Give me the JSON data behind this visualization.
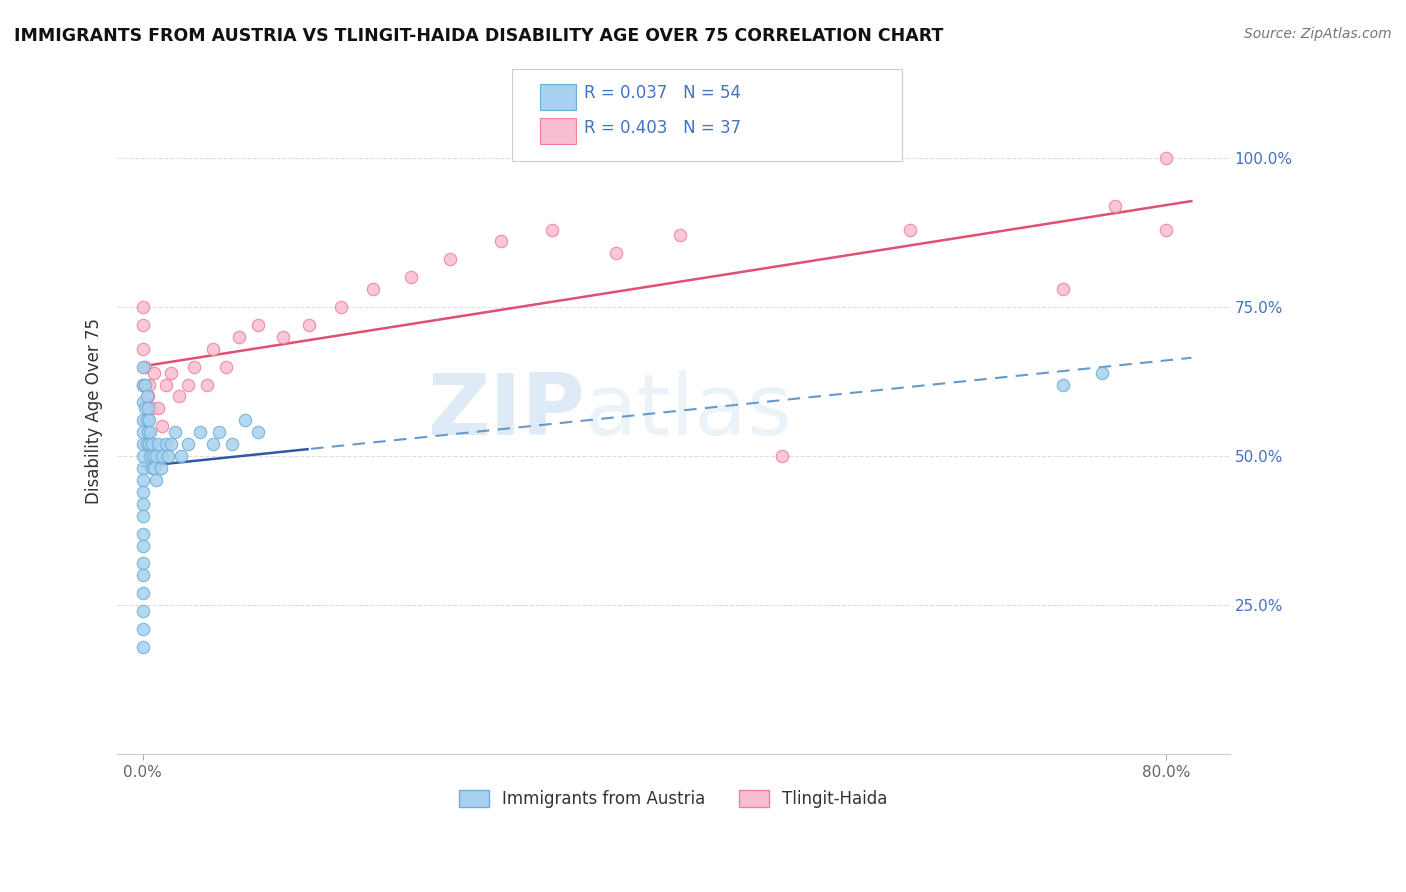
{
  "title": "IMMIGRANTS FROM AUSTRIA VS TLINGIT-HAIDA DISABILITY AGE OVER 75 CORRELATION CHART",
  "source_text": "Source: ZipAtlas.com",
  "ylabel": "Disability Age Over 75",
  "xlim": [
    -0.02,
    0.85
  ],
  "ylim": [
    0.0,
    1.15
  ],
  "blue_scatter_face": "#A8D0F0",
  "blue_scatter_edge": "#6BAED6",
  "pink_scatter_face": "#F9BDD0",
  "pink_scatter_edge": "#F08098",
  "blue_line_color": "#3355AA",
  "pink_line_color": "#E05070",
  "blue_dash_color": "#6699CC",
  "grid_color": "#DDDDDD",
  "right_tick_color": "#4472C4",
  "watermark_color": "#E0E8F0",
  "austria_x": [
    0.0,
    0.0,
    0.0,
    0.0,
    0.0,
    0.0,
    0.0,
    0.0,
    0.0,
    0.0,
    0.0,
    0.0,
    0.0,
    0.0,
    0.0,
    0.0,
    0.0,
    0.0,
    0.0,
    0.0,
    0.002,
    0.002,
    0.003,
    0.003,
    0.003,
    0.004,
    0.004,
    0.005,
    0.005,
    0.006,
    0.006,
    0.007,
    0.007,
    0.008,
    0.009,
    0.01,
    0.01,
    0.012,
    0.014,
    0.015,
    0.018,
    0.02,
    0.022,
    0.025,
    0.03,
    0.035,
    0.045,
    0.055,
    0.06,
    0.07,
    0.08,
    0.09,
    0.72,
    0.75
  ],
  "austria_y": [
    0.65,
    0.62,
    0.59,
    0.56,
    0.54,
    0.52,
    0.5,
    0.48,
    0.46,
    0.44,
    0.42,
    0.4,
    0.37,
    0.35,
    0.32,
    0.3,
    0.27,
    0.24,
    0.21,
    0.18,
    0.62,
    0.58,
    0.6,
    0.56,
    0.52,
    0.58,
    0.54,
    0.56,
    0.52,
    0.54,
    0.5,
    0.52,
    0.48,
    0.5,
    0.48,
    0.5,
    0.46,
    0.52,
    0.48,
    0.5,
    0.52,
    0.5,
    0.52,
    0.54,
    0.5,
    0.52,
    0.54,
    0.52,
    0.54,
    0.52,
    0.56,
    0.54,
    0.62,
    0.64
  ],
  "tlingit_x": [
    0.0,
    0.0,
    0.0,
    0.0,
    0.002,
    0.004,
    0.005,
    0.007,
    0.009,
    0.012,
    0.015,
    0.018,
    0.022,
    0.028,
    0.035,
    0.04,
    0.05,
    0.055,
    0.065,
    0.075,
    0.09,
    0.11,
    0.13,
    0.155,
    0.18,
    0.21,
    0.24,
    0.28,
    0.32,
    0.37,
    0.42,
    0.5,
    0.6,
    0.72,
    0.76,
    0.8,
    0.8
  ],
  "tlingit_y": [
    0.72,
    0.68,
    0.75,
    0.62,
    0.65,
    0.6,
    0.62,
    0.58,
    0.64,
    0.58,
    0.55,
    0.62,
    0.64,
    0.6,
    0.62,
    0.65,
    0.62,
    0.68,
    0.65,
    0.7,
    0.72,
    0.7,
    0.72,
    0.75,
    0.78,
    0.8,
    0.83,
    0.86,
    0.88,
    0.84,
    0.87,
    0.5,
    0.88,
    0.78,
    0.92,
    0.88,
    1.0
  ]
}
